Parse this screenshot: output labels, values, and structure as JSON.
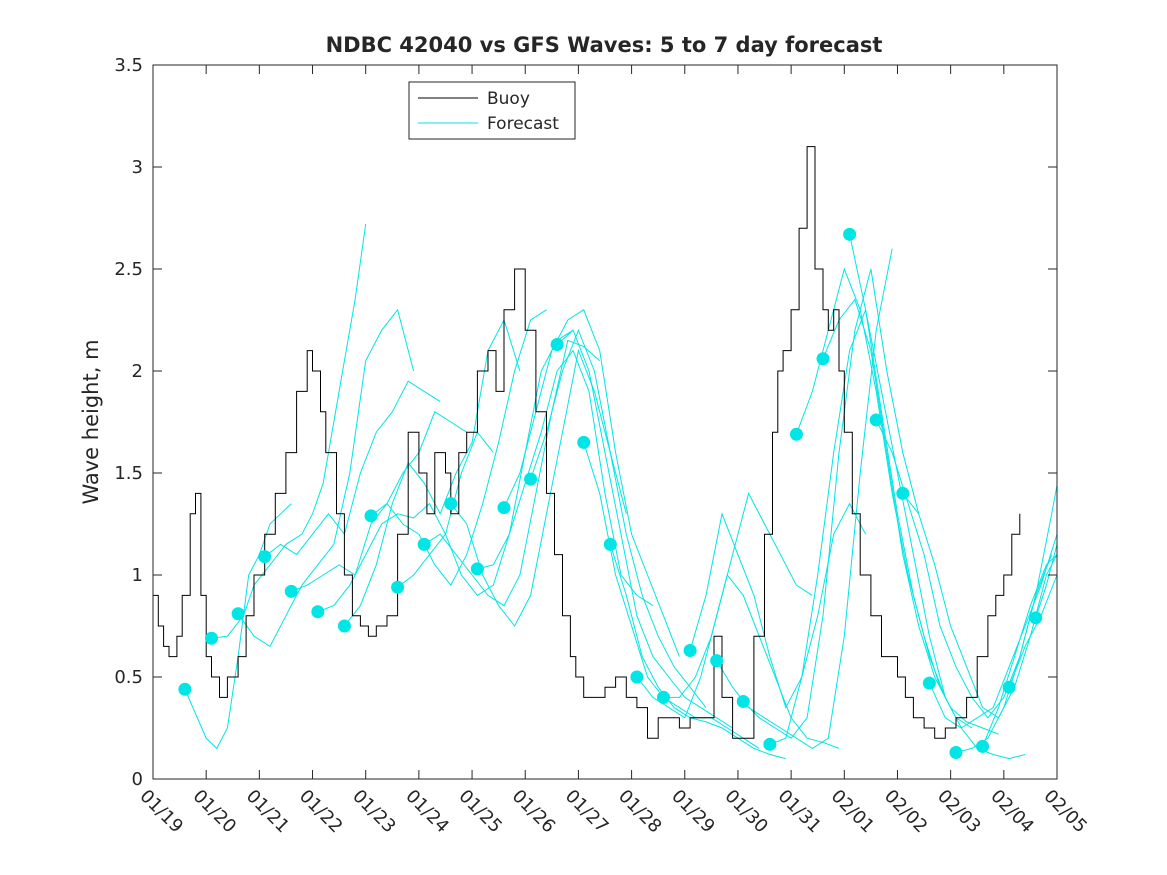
{
  "chart_data": {
    "type": "line",
    "title": "NDBC 42040 vs GFS Waves: 5 to 7 day forecast",
    "xlabel": "",
    "ylabel": "Wave height, m",
    "xlim": [
      0,
      17
    ],
    "ylim": [
      0,
      3.5
    ],
    "x_ticks": [
      0,
      1,
      2,
      3,
      4,
      5,
      6,
      7,
      8,
      9,
      10,
      11,
      12,
      13,
      14,
      15,
      16,
      17
    ],
    "x_tick_labels": [
      "01/19",
      "01/20",
      "01/21",
      "01/22",
      "01/23",
      "01/24",
      "01/25",
      "01/26",
      "01/27",
      "01/28",
      "01/29",
      "01/30",
      "01/31",
      "02/01",
      "02/02",
      "02/03",
      "02/04",
      "02/05"
    ],
    "y_ticks": [
      0,
      0.5,
      1,
      1.5,
      2,
      2.5,
      3,
      3.5
    ],
    "y_tick_labels": [
      "0",
      "0.5",
      "1",
      "1.5",
      "2",
      "2.5",
      "3",
      "3.5"
    ],
    "grid": false,
    "legend": {
      "position": "top-center",
      "entries": [
        "Buoy",
        "Forecast"
      ]
    },
    "colors": {
      "buoy": "#000000",
      "forecast": "#00e5e5",
      "axis": "#262626"
    },
    "series": [
      {
        "name": "Buoy",
        "x": [
          0,
          0.1,
          0.2,
          0.3,
          0.45,
          0.55,
          0.7,
          0.8,
          0.9,
          1.0,
          1.1,
          1.25,
          1.4,
          1.6,
          1.75,
          1.9,
          2.1,
          2.3,
          2.5,
          2.7,
          2.9,
          3.0,
          3.15,
          3.25,
          3.45,
          3.6,
          3.75,
          3.9,
          4.05,
          4.2,
          4.4,
          4.6,
          4.8,
          5.0,
          5.15,
          5.3,
          5.5,
          5.6,
          5.75,
          5.9,
          6.1,
          6.3,
          6.45,
          6.6,
          6.8,
          7.0,
          7.2,
          7.4,
          7.55,
          7.7,
          7.85,
          7.95,
          8.1,
          8.3,
          8.5,
          8.7,
          8.9,
          9.1,
          9.3,
          9.5,
          9.7,
          9.9,
          10.1,
          10.3,
          10.55,
          10.7,
          10.9,
          11.1,
          11.3,
          11.5,
          11.65,
          11.75,
          11.85,
          12.0,
          12.15,
          12.3,
          12.45,
          12.6,
          12.7,
          12.8,
          12.9,
          13.0,
          13.15,
          13.3,
          13.5,
          13.7,
          13.85,
          14.0,
          14.15,
          14.3,
          14.5,
          14.7,
          14.9,
          15.1,
          15.3,
          15.5,
          15.7,
          15.85,
          16.0,
          16.15,
          16.3
        ],
        "values": [
          0.9,
          0.75,
          0.65,
          0.6,
          0.7,
          0.9,
          1.3,
          1.4,
          0.9,
          0.6,
          0.5,
          0.4,
          0.5,
          0.6,
          0.8,
          1.0,
          1.2,
          1.4,
          1.6,
          1.9,
          2.1,
          2.0,
          1.8,
          1.6,
          1.3,
          1.0,
          0.8,
          0.75,
          0.7,
          0.75,
          0.8,
          1.2,
          1.7,
          1.5,
          1.3,
          1.6,
          1.5,
          1.3,
          1.6,
          1.7,
          2.0,
          2.1,
          1.9,
          2.3,
          2.5,
          2.2,
          1.8,
          1.4,
          1.1,
          0.8,
          0.6,
          0.5,
          0.4,
          0.4,
          0.45,
          0.5,
          0.4,
          0.35,
          0.2,
          0.3,
          0.3,
          0.25,
          0.3,
          0.3,
          0.7,
          0.4,
          0.2,
          0.2,
          0.7,
          1.2,
          1.7,
          2.0,
          2.1,
          2.3,
          2.7,
          3.1,
          2.5,
          2.3,
          2.2,
          2.3,
          2.0,
          1.7,
          1.3,
          1.0,
          0.8,
          0.6,
          0.6,
          0.5,
          0.4,
          0.3,
          0.25,
          0.2,
          0.25,
          0.3,
          0.4,
          0.6,
          0.8,
          0.9,
          1.0,
          1.2,
          1.3
        ]
      },
      {
        "name": "Forecast",
        "x": [
          0.6,
          1.0,
          1.2,
          1.4,
          1.6,
          1.8,
          2.0,
          2.2,
          2.4,
          2.6
        ],
        "values": [
          0.44,
          0.2,
          0.15,
          0.25,
          0.6,
          1.0,
          1.1,
          1.25,
          1.3,
          1.35
        ]
      },
      {
        "name": "Forecast",
        "x": [
          1.1,
          1.4,
          1.7,
          1.9,
          2.2,
          2.5,
          2.8,
          3.0,
          3.2,
          3.4,
          3.6,
          3.8,
          4.0
        ],
        "values": [
          0.69,
          0.7,
          0.8,
          0.95,
          1.05,
          1.15,
          1.2,
          1.3,
          1.45,
          1.75,
          2.05,
          2.35,
          2.72
        ]
      },
      {
        "name": "Forecast",
        "x": [
          1.6,
          1.9,
          2.2,
          2.5,
          2.8,
          3.1,
          3.4,
          3.7,
          4.0,
          4.3,
          4.6,
          4.9
        ],
        "values": [
          0.81,
          0.7,
          0.65,
          0.8,
          0.95,
          1.05,
          1.15,
          1.5,
          2.05,
          2.2,
          2.3,
          2.0
        ]
      },
      {
        "name": "Forecast",
        "x": [
          2.1,
          2.4,
          2.7,
          3.0,
          3.3,
          3.6,
          3.9,
          4.2,
          4.5,
          4.8,
          5.1,
          5.4
        ],
        "values": [
          1.09,
          1.15,
          1.1,
          1.2,
          1.3,
          1.2,
          1.5,
          1.7,
          1.8,
          1.95,
          1.9,
          1.85
        ]
      },
      {
        "name": "Forecast",
        "x": [
          2.6,
          2.9,
          3.2,
          3.5,
          3.8,
          4.1,
          4.4,
          4.7,
          5.0,
          5.3,
          5.6,
          5.9
        ],
        "values": [
          0.92,
          0.95,
          1.0,
          1.05,
          1.0,
          1.25,
          1.35,
          1.5,
          1.6,
          1.8,
          1.75,
          1.7
        ]
      },
      {
        "name": "Forecast",
        "x": [
          3.1,
          3.4,
          3.7,
          4.0,
          4.3,
          4.6,
          4.9,
          5.2,
          5.5,
          5.8,
          6.1,
          6.4
        ],
        "values": [
          0.82,
          0.85,
          0.95,
          1.1,
          1.25,
          1.3,
          1.28,
          1.35,
          1.2,
          1.5,
          1.7,
          1.6
        ]
      },
      {
        "name": "Forecast",
        "x": [
          3.6,
          3.9,
          4.2,
          4.5,
          4.8,
          5.1,
          5.4,
          5.7,
          6.0,
          6.3,
          6.6,
          6.9
        ],
        "values": [
          0.75,
          0.85,
          1.05,
          1.35,
          1.55,
          1.45,
          1.3,
          1.5,
          1.65,
          2.1,
          2.25,
          2.0
        ]
      },
      {
        "name": "Forecast",
        "x": [
          4.1,
          4.4,
          4.7,
          5.0,
          5.3,
          5.6,
          5.9,
          6.2,
          6.5,
          6.8,
          7.1,
          7.4
        ],
        "values": [
          1.29,
          1.35,
          1.25,
          1.2,
          1.05,
          0.95,
          1.1,
          1.35,
          1.65,
          2.0,
          2.25,
          2.3
        ]
      },
      {
        "name": "Forecast",
        "x": [
          4.6,
          4.9,
          5.2,
          5.5,
          5.8,
          6.1,
          6.4,
          6.7,
          7.0,
          7.3,
          7.6,
          7.9
        ],
        "values": [
          0.94,
          1.0,
          1.1,
          1.2,
          1.0,
          0.9,
          0.95,
          1.2,
          1.6,
          2.0,
          2.15,
          2.2
        ]
      },
      {
        "name": "Forecast",
        "x": [
          5.1,
          5.4,
          5.7,
          6.0,
          6.3,
          6.6,
          6.9,
          7.2,
          7.5,
          7.8,
          8.1,
          8.4
        ],
        "values": [
          1.15,
          1.2,
          1.1,
          1.0,
          0.9,
          0.85,
          1.0,
          1.4,
          1.8,
          2.15,
          2.12,
          2.05
        ]
      },
      {
        "name": "Forecast",
        "x": [
          5.6,
          5.9,
          6.2,
          6.5,
          6.8,
          7.1,
          7.4,
          7.7,
          8.0,
          8.3,
          8.6,
          8.9
        ],
        "values": [
          1.35,
          1.25,
          1.0,
          0.85,
          0.75,
          0.9,
          1.3,
          1.7,
          2.1,
          1.9,
          1.6,
          1.3
        ]
      },
      {
        "name": "Forecast",
        "x": [
          6.1,
          6.4,
          6.7,
          7.0,
          7.3,
          7.6,
          7.9,
          8.2,
          8.5,
          8.8,
          9.1,
          9.4
        ],
        "values": [
          1.03,
          1.05,
          1.2,
          1.45,
          1.7,
          2.0,
          2.1,
          1.9,
          1.4,
          1.0,
          0.9,
          0.85
        ]
      },
      {
        "name": "Forecast",
        "x": [
          6.6,
          6.9,
          7.2,
          7.5,
          7.8,
          8.1,
          8.4,
          8.7,
          9.0,
          9.3,
          9.6,
          9.9
        ],
        "values": [
          1.33,
          1.5,
          1.8,
          2.1,
          2.25,
          2.3,
          2.1,
          1.6,
          1.2,
          1.0,
          0.8,
          0.6
        ]
      },
      {
        "name": "Forecast",
        "x": [
          7.1,
          7.4,
          7.7,
          8.0,
          8.3,
          8.6,
          8.9,
          9.2,
          9.5,
          9.8,
          10.1,
          10.4
        ],
        "values": [
          1.47,
          1.7,
          2.0,
          2.2,
          2.0,
          1.6,
          1.2,
          0.9,
          0.7,
          0.55,
          0.45,
          0.35
        ]
      },
      {
        "name": "Forecast",
        "x": [
          7.6,
          7.9,
          8.2,
          8.5,
          8.8,
          9.1,
          9.4,
          9.7,
          10.0,
          10.3,
          10.6,
          10.9
        ],
        "values": [
          2.13,
          2.2,
          2.0,
          1.6,
          1.2,
          0.8,
          0.6,
          0.5,
          0.4,
          0.35,
          0.3,
          0.25
        ]
      },
      {
        "name": "Forecast",
        "x": [
          8.1,
          8.4,
          8.7,
          9.0,
          9.3,
          9.6,
          9.9,
          10.2,
          10.5,
          10.8,
          11.1,
          11.4
        ],
        "values": [
          1.65,
          1.4,
          1.0,
          0.75,
          0.5,
          0.4,
          0.35,
          0.3,
          0.3,
          0.25,
          0.2,
          0.15
        ]
      },
      {
        "name": "Forecast",
        "x": [
          8.6,
          8.9,
          9.2,
          9.5,
          9.8,
          10.1,
          10.4,
          10.7,
          11.0,
          11.3,
          11.6,
          11.9
        ],
        "values": [
          1.15,
          0.9,
          0.6,
          0.45,
          0.35,
          0.3,
          0.28,
          0.25,
          0.2,
          0.15,
          0.12,
          0.1
        ]
      },
      {
        "name": "Forecast",
        "x": [
          9.1,
          9.4,
          9.7,
          10.0,
          10.3,
          10.6,
          10.9,
          11.2,
          11.5,
          11.8,
          12.1,
          12.4
        ],
        "values": [
          0.5,
          0.4,
          0.35,
          0.3,
          0.5,
          0.8,
          1.1,
          1.4,
          1.25,
          1.1,
          0.95,
          0.9
        ]
      },
      {
        "name": "Forecast",
        "x": [
          9.6,
          9.9,
          10.2,
          10.5,
          10.8,
          11.1,
          11.4,
          11.7,
          12.0,
          12.3,
          12.6,
          12.9
        ],
        "values": [
          0.4,
          0.4,
          0.5,
          0.7,
          1.0,
          0.9,
          0.7,
          0.5,
          0.3,
          0.2,
          0.18,
          0.15
        ]
      },
      {
        "name": "Forecast",
        "x": [
          10.1,
          10.4,
          10.7,
          11.0,
          11.3,
          11.6,
          11.9,
          12.2,
          12.5,
          12.8,
          13.1,
          13.4
        ],
        "values": [
          0.63,
          0.9,
          1.3,
          1.1,
          0.9,
          0.6,
          0.35,
          0.5,
          0.8,
          1.2,
          1.35,
          1.2
        ]
      },
      {
        "name": "Forecast",
        "x": [
          10.6,
          10.9,
          11.2,
          11.5,
          11.8,
          12.1,
          12.4,
          12.7,
          13.0,
          13.3,
          13.6,
          13.9
        ],
        "values": [
          0.58,
          0.45,
          0.35,
          0.3,
          0.25,
          0.2,
          0.15,
          0.2,
          0.7,
          1.5,
          2.2,
          2.6
        ]
      },
      {
        "name": "Forecast",
        "x": [
          11.1,
          11.4,
          11.7,
          12.0,
          12.3,
          12.6,
          12.9,
          13.2,
          13.5,
          13.8,
          14.1,
          14.4
        ],
        "values": [
          0.38,
          0.3,
          0.25,
          0.2,
          0.3,
          0.8,
          1.6,
          2.2,
          2.5,
          2.0,
          1.6,
          1.3
        ]
      },
      {
        "name": "Forecast",
        "x": [
          11.6,
          11.9,
          12.2,
          12.5,
          12.8,
          13.1,
          13.4,
          13.7,
          14.0,
          14.3,
          14.6,
          14.9
        ],
        "values": [
          0.17,
          0.2,
          0.5,
          1.0,
          1.6,
          2.1,
          2.3,
          1.9,
          1.5,
          1.1,
          0.7,
          0.4
        ]
      },
      {
        "name": "Forecast",
        "x": [
          12.1,
          12.4,
          12.7,
          13.0,
          13.3,
          13.6,
          13.9,
          14.2,
          14.5,
          14.8,
          15.1,
          15.4
        ],
        "values": [
          1.69,
          1.9,
          2.2,
          2.5,
          2.3,
          1.9,
          1.4,
          1.0,
          0.7,
          0.45,
          0.3,
          0.25
        ]
      },
      {
        "name": "Forecast",
        "x": [
          12.6,
          12.9,
          13.2,
          13.5,
          13.8,
          14.1,
          14.4,
          14.7,
          15.0,
          15.3,
          15.6,
          15.9
        ],
        "values": [
          2.06,
          2.25,
          2.35,
          2.1,
          1.6,
          1.1,
          0.75,
          0.5,
          0.35,
          0.28,
          0.25,
          0.22
        ]
      },
      {
        "name": "Forecast",
        "x": [
          13.1,
          13.4,
          13.7,
          14.0,
          14.3,
          14.6,
          14.9,
          15.2,
          15.5,
          15.8,
          16.1,
          16.4
        ],
        "values": [
          2.67,
          2.3,
          1.8,
          1.3,
          0.9,
          0.6,
          0.4,
          0.25,
          0.15,
          0.12,
          0.1,
          0.12
        ]
      },
      {
        "name": "Forecast",
        "x": [
          13.6,
          13.9,
          14.2,
          14.5,
          14.8,
          15.1,
          15.4,
          15.7,
          16.0,
          16.3,
          16.6,
          16.9
        ],
        "values": [
          1.76,
          1.6,
          1.35,
          1.1,
          0.75,
          0.55,
          0.4,
          0.3,
          0.4,
          0.6,
          0.9,
          1.1
        ]
      },
      {
        "name": "Forecast",
        "x": [
          14.1,
          14.4,
          14.7,
          15.0,
          15.3,
          15.6,
          15.9,
          16.2,
          16.5,
          16.8,
          17.0
        ],
        "values": [
          1.4,
          1.3,
          1.05,
          0.75,
          0.55,
          0.35,
          0.3,
          0.45,
          0.7,
          1.0,
          1.1
        ]
      },
      {
        "name": "Forecast",
        "x": [
          14.6,
          14.9,
          15.2,
          15.5,
          15.8,
          16.1,
          16.4,
          16.7,
          17.0
        ],
        "values": [
          0.47,
          0.3,
          0.25,
          0.3,
          0.35,
          0.55,
          0.75,
          0.95,
          1.2
        ]
      },
      {
        "name": "Forecast",
        "x": [
          15.1,
          15.4,
          15.7,
          16.0,
          16.3,
          16.6,
          16.9,
          17.0
        ],
        "values": [
          0.13,
          0.15,
          0.2,
          0.35,
          0.6,
          0.9,
          1.3,
          1.44
        ]
      },
      {
        "name": "Forecast",
        "x": [
          15.6,
          15.9,
          16.2,
          16.5,
          16.8,
          17.0
        ],
        "values": [
          0.16,
          0.35,
          0.6,
          0.85,
          1.05,
          1.1
        ]
      },
      {
        "name": "Forecast",
        "x": [
          16.1,
          16.4,
          16.7,
          17.0
        ],
        "values": [
          0.45,
          0.65,
          0.8,
          1.0
        ]
      },
      {
        "name": "Forecast",
        "x": [
          16.6,
          16.8,
          17.0
        ],
        "values": [
          0.79,
          0.95,
          1.15
        ]
      }
    ],
    "forecast_markers": {
      "x": [
        0.6,
        1.1,
        1.6,
        2.1,
        2.6,
        3.1,
        3.6,
        4.1,
        4.6,
        5.1,
        5.6,
        6.1,
        6.6,
        7.1,
        7.6,
        8.1,
        8.6,
        9.1,
        9.6,
        10.1,
        10.6,
        11.1,
        11.6,
        12.1,
        12.6,
        13.1,
        13.6,
        14.1,
        14.6,
        15.1,
        15.6,
        16.1,
        16.6
      ],
      "values": [
        0.44,
        0.69,
        0.81,
        1.09,
        0.92,
        0.82,
        0.75,
        1.29,
        0.94,
        1.15,
        1.35,
        1.03,
        1.33,
        1.47,
        2.13,
        1.65,
        1.15,
        0.5,
        0.4,
        0.63,
        0.58,
        0.38,
        0.17,
        1.69,
        2.06,
        2.67,
        1.76,
        1.4,
        0.47,
        0.13,
        0.16,
        0.45,
        0.79
      ]
    }
  }
}
